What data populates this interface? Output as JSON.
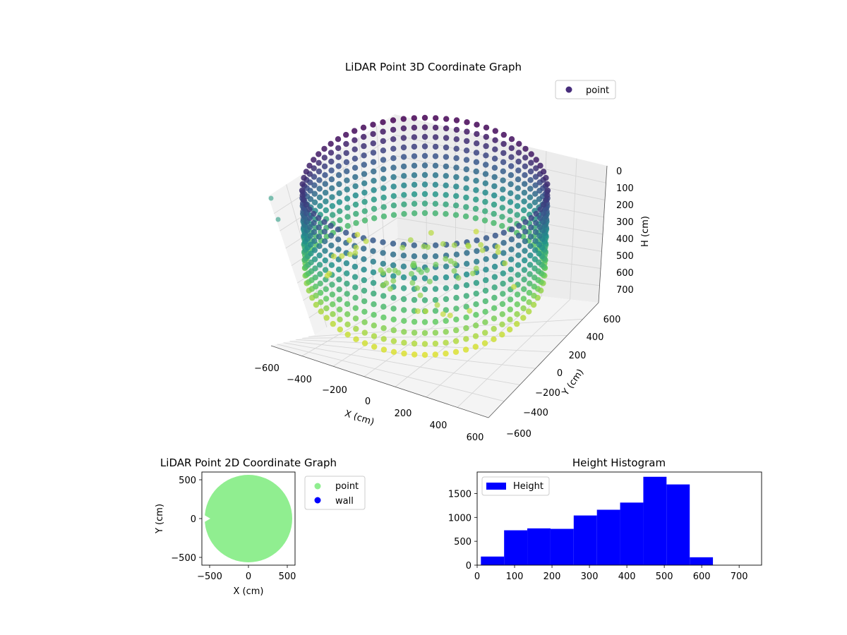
{
  "chart_data": [
    {
      "type": "scatter",
      "title": "LiDAR Point 3D Coordinate Graph",
      "xlabel": "X (cm)",
      "ylabel": "Y (cm)",
      "zlabel": "H (cm)",
      "x_ticks": [
        "−600",
        "−400",
        "−200",
        "0",
        "200",
        "400",
        "600"
      ],
      "y_ticks": [
        "−600",
        "−400",
        "−200",
        "0",
        "200",
        "400",
        "600"
      ],
      "z_ticks": [
        "0",
        "100",
        "200",
        "300",
        "400",
        "500",
        "600",
        "700"
      ],
      "xlim": [
        -600,
        600
      ],
      "ylim": [
        -600,
        600
      ],
      "zlim": [
        0,
        750
      ],
      "z_inverted": true,
      "series": [
        {
          "name": "point"
        }
      ],
      "legend_position": "top-right",
      "colors": {
        "legend_marker": "#472d7b",
        "colormap": [
          "#440154",
          "#3b528b",
          "#21918c",
          "#5ec962",
          "#fde725"
        ]
      },
      "grid": true
    },
    {
      "type": "scatter",
      "title": "LiDAR Point 2D Coordinate Graph",
      "xlabel": "X (cm)",
      "ylabel": "Y (cm)",
      "x_ticks": [
        "−500",
        "0",
        "500"
      ],
      "y_ticks": [
        "−500",
        "0",
        "500"
      ],
      "xlim": [
        -600,
        600
      ],
      "ylim": [
        -600,
        600
      ],
      "series": [
        {
          "name": "point",
          "color": "#90ee90",
          "shape": "filled disc radius 550 with notch at (-550, 0)"
        },
        {
          "name": "wall",
          "color": "#0000ff",
          "points": []
        }
      ],
      "legend_position": "outside-right"
    },
    {
      "type": "bar",
      "title": "Height Histogram",
      "x_ticks": [
        "0",
        "100",
        "200",
        "300",
        "400",
        "500",
        "600",
        "700"
      ],
      "y_ticks": [
        "0",
        "500",
        "1000",
        "1500"
      ],
      "xlim": [
        0,
        760
      ],
      "ylim": [
        0,
        1950
      ],
      "bin_edges": [
        10,
        72,
        134,
        196,
        258,
        320,
        382,
        444,
        506,
        568,
        630
      ],
      "values": [
        180,
        730,
        770,
        760,
        1040,
        1160,
        1310,
        1850,
        1690,
        165
      ],
      "series": [
        {
          "name": "Height",
          "color": "#0000ff"
        }
      ],
      "legend_position": "top-left"
    }
  ]
}
